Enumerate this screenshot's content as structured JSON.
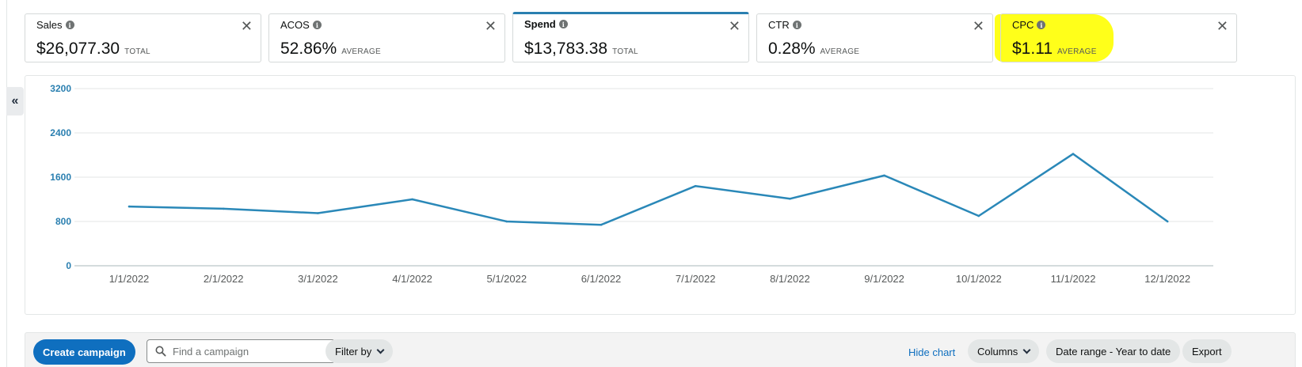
{
  "metrics": [
    {
      "name": "Sales",
      "value": "$26,077.30",
      "agg": "TOTAL",
      "active": false,
      "highlighted": false
    },
    {
      "name": "ACOS",
      "value": "52.86%",
      "agg": "AVERAGE",
      "active": false,
      "highlighted": false
    },
    {
      "name": "Spend",
      "value": "$13,783.38",
      "agg": "TOTAL",
      "active": true,
      "highlighted": false
    },
    {
      "name": "CTR",
      "value": "0.28%",
      "agg": "AVERAGE",
      "active": false,
      "highlighted": false
    },
    {
      "name": "CPC",
      "value": "$1.11",
      "agg": "AVERAGE",
      "active": false,
      "highlighted": true
    }
  ],
  "collapse_glyph": "«",
  "close_glyph": "✕",
  "info_glyph": "i",
  "chart_data": {
    "type": "line",
    "categories": [
      "1/1/2022",
      "2/1/2022",
      "3/1/2022",
      "4/1/2022",
      "5/1/2022",
      "6/1/2022",
      "7/1/2022",
      "8/1/2022",
      "9/1/2022",
      "10/1/2022",
      "11/1/2022",
      "12/1/2022"
    ],
    "series": [
      {
        "values": [
          1070,
          1030,
          950,
          1200,
          800,
          740,
          1440,
          1210,
          1630,
          900,
          2020,
          800
        ],
        "color": "#2a88b8"
      }
    ],
    "yticks": [
      0,
      800,
      1600,
      2400,
      3200
    ],
    "ylim": [
      0,
      3200
    ],
    "grid": true
  },
  "toolbar": {
    "create_label": "Create campaign",
    "search_placeholder": "Find a campaign",
    "filter_label": "Filter by",
    "hide_chart_label": "Hide chart",
    "columns_label": "Columns",
    "date_range_label": "Date range - Year to date",
    "export_label": "Export"
  },
  "colors": {
    "accent": "#2a7fb0",
    "highlight": "#ffff1a",
    "primary_button": "#0f6fbf"
  }
}
